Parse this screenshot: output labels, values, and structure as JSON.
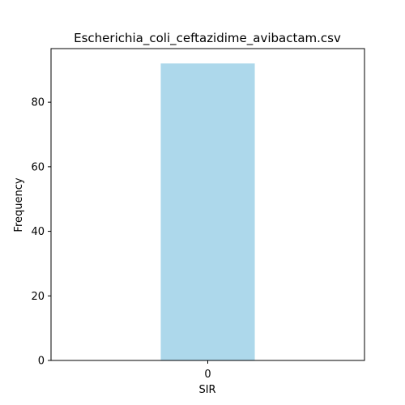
{
  "chart_data": {
    "type": "bar",
    "title": "Escherichia_coli_ceftazidime_avibactam.csv",
    "xlabel": "SIR",
    "ylabel": "Frequency",
    "categories": [
      "0"
    ],
    "values": [
      92
    ],
    "ylim": [
      0,
      96.6
    ],
    "yticks": [
      0,
      20,
      40,
      60,
      80
    ],
    "bar_color": "#add8eb",
    "grid": false,
    "legend": "none"
  }
}
